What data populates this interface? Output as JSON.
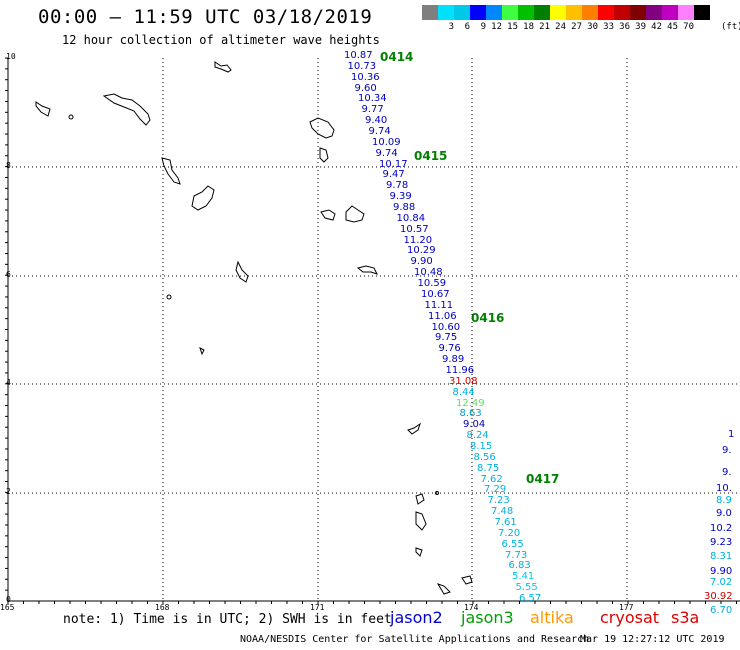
{
  "title": "00:00 – 11:59 UTC 03/18/2019",
  "subtitle": "12 hour collection of altimeter wave heights",
  "colorbar": {
    "colors": [
      "#7f7f7f",
      "#00e0ff",
      "#00c8e8",
      "#0000ff",
      "#0088ff",
      "#40ff40",
      "#00c000",
      "#008000",
      "#ffff00",
      "#ffc000",
      "#ff8000",
      "#ff0000",
      "#c00000",
      "#800000",
      "#800080",
      "#c000c0",
      "#ff80ff",
      "#000000"
    ],
    "labels": [
      "3",
      "6",
      "9",
      "12",
      "15",
      "18",
      "21",
      "24",
      "27",
      "30",
      "33",
      "36",
      "39",
      "42",
      "45",
      "70"
    ],
    "unit": "(ft)"
  },
  "lat_labels": [
    "10",
    "8",
    "6",
    "4",
    "2",
    "0"
  ],
  "lon_labels": [
    "165",
    "168",
    "171",
    "174",
    "177"
  ],
  "note": "note: 1) Time is in UTC; 2) SWH is in feet",
  "legend": [
    {
      "name": "jason2",
      "color": "#0000d0"
    },
    {
      "name": "jason3",
      "color": "#00a000"
    },
    {
      "name": "altika",
      "color": "#ff9900"
    },
    {
      "name": "cryosat",
      "color": "#e00000"
    },
    {
      "name": "s3a",
      "color": "#e00000"
    }
  ],
  "footer_left": "NOAA/NESDIS Center for Satellite Applications and Research",
  "footer_right": "Mar 19 12:27:12 UTC 2019",
  "time_labels": [
    "0414",
    "0415",
    "0416",
    "0417"
  ],
  "track_main": [
    {
      "v": "10.87",
      "c": "#0000c0"
    },
    {
      "v": "10.73",
      "c": "#0000c0"
    },
    {
      "v": "10.36",
      "c": "#0000c0"
    },
    {
      "v": "9.60",
      "c": "#0000c0"
    },
    {
      "v": "10.34",
      "c": "#0000c0"
    },
    {
      "v": "9.77",
      "c": "#0000c0"
    },
    {
      "v": "9.40",
      "c": "#0000c0"
    },
    {
      "v": "9.74",
      "c": "#0000c0"
    },
    {
      "v": "10.09",
      "c": "#0000c0"
    },
    {
      "v": "9.74",
      "c": "#0000c0"
    },
    {
      "v": "10.17",
      "c": "#0000c0"
    },
    {
      "v": "9.47",
      "c": "#0000c0"
    },
    {
      "v": "9.78",
      "c": "#0000c0"
    },
    {
      "v": "9.39",
      "c": "#0000c0"
    },
    {
      "v": "9.88",
      "c": "#0000c0"
    },
    {
      "v": "10.84",
      "c": "#0000c0"
    },
    {
      "v": "10.57",
      "c": "#0000c0"
    },
    {
      "v": "11.20",
      "c": "#0000c0"
    },
    {
      "v": "10.29",
      "c": "#0000c0"
    },
    {
      "v": "9.90",
      "c": "#0000c0"
    },
    {
      "v": "10.48",
      "c": "#0000c0"
    },
    {
      "v": "10.59",
      "c": "#0000c0"
    },
    {
      "v": "10.67",
      "c": "#0000c0"
    },
    {
      "v": "11.11",
      "c": "#0000c0"
    },
    {
      "v": "11.06",
      "c": "#0000c0"
    },
    {
      "v": "10.60",
      "c": "#0000c0"
    },
    {
      "v": "9.75",
      "c": "#0000c0"
    },
    {
      "v": "9.76",
      "c": "#0000c0"
    },
    {
      "v": "9.89",
      "c": "#0000c0"
    },
    {
      "v": "11.96",
      "c": "#0000c0"
    },
    {
      "v": "31.08",
      "c": "#d00000"
    },
    {
      "v": "8.44",
      "c": "#00b0e0"
    },
    {
      "v": "12.49",
      "c": "#60e060"
    },
    {
      "v": "8.63",
      "c": "#00a0d0"
    },
    {
      "v": "9.04",
      "c": "#0000c0"
    },
    {
      "v": "8.24",
      "c": "#00b0e0"
    },
    {
      "v": "8.15",
      "c": "#00b0e0"
    },
    {
      "v": "8.56",
      "c": "#00b0e0"
    },
    {
      "v": "8.75",
      "c": "#00b0e0"
    },
    {
      "v": "7.62",
      "c": "#00b0e0"
    },
    {
      "v": "7.29",
      "c": "#00b0e0"
    },
    {
      "v": "7.23",
      "c": "#00b0e0"
    },
    {
      "v": "7.48",
      "c": "#00b0e0"
    },
    {
      "v": "7.61",
      "c": "#00b0e0"
    },
    {
      "v": "7.20",
      "c": "#00b0e0"
    },
    {
      "v": "6.55",
      "c": "#00b0e0"
    },
    {
      "v": "7.73",
      "c": "#00b0e0"
    },
    {
      "v": "6.83",
      "c": "#00b0e0"
    },
    {
      "v": "5.41",
      "c": "#00c8f0"
    },
    {
      "v": "5.55",
      "c": "#00c8f0"
    },
    {
      "v": "6.57",
      "c": "#00b0e0"
    }
  ],
  "track_right": [
    {
      "v": "1",
      "c": "#0000c0"
    },
    {
      "v": "9.",
      "c": "#0000c0"
    },
    {
      "v": "9.",
      "c": "#0000c0"
    },
    {
      "v": "10.",
      "c": "#0000c0"
    },
    {
      "v": "8.9",
      "c": "#00b0e0"
    },
    {
      "v": "9.0",
      "c": "#0000c0"
    },
    {
      "v": "10.2",
      "c": "#0000c0"
    },
    {
      "v": "9.23",
      "c": "#0000c0"
    },
    {
      "v": "8.31",
      "c": "#00b0e0"
    },
    {
      "v": "9.90",
      "c": "#0000c0"
    },
    {
      "v": "7.02",
      "c": "#00b0e0"
    },
    {
      "v": "30.92",
      "c": "#d00000"
    },
    {
      "v": "6.70",
      "c": "#00b0e0"
    }
  ]
}
